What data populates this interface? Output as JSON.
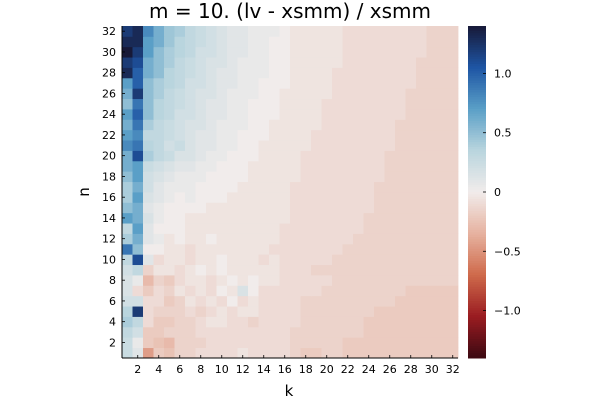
{
  "chart_data": {
    "type": "heatmap",
    "title": "m = 10. (lv - xsmm) / xsmm",
    "xlabel": "k",
    "ylabel": "n",
    "x_range": [
      1,
      32
    ],
    "y_range": [
      1,
      32
    ],
    "x_ticks": [
      2,
      4,
      6,
      8,
      10,
      12,
      14,
      16,
      18,
      20,
      22,
      24,
      26,
      28,
      30,
      32
    ],
    "y_ticks": [
      2,
      4,
      6,
      8,
      10,
      12,
      14,
      16,
      18,
      20,
      22,
      24,
      26,
      28,
      30,
      32
    ],
    "x_tick_labels": [
      "2",
      "4",
      "6",
      "8",
      "10",
      "12",
      "14",
      "16",
      "18",
      "20",
      "22",
      "24",
      "26",
      "28",
      "30",
      "32"
    ],
    "y_tick_labels": [
      "2",
      "4",
      "6",
      "8",
      "10",
      "12",
      "14",
      "16",
      "18",
      "20",
      "22",
      "24",
      "26",
      "28",
      "30",
      "32"
    ],
    "colorbar": {
      "range": [
        -1.4,
        1.4
      ],
      "ticks": [
        -1.0,
        -0.5,
        0,
        0.5,
        1.0
      ],
      "tick_labels": [
        "−1.0",
        "−0.5",
        "0",
        "0.5",
        "1.0"
      ],
      "colormap": "balance",
      "stops": [
        "#3c0912",
        "#9a1c21",
        "#cf6a4b",
        "#e6b2a0",
        "#f1eceb",
        "#b9d5de",
        "#5a9fc7",
        "#1e55a4",
        "#171937"
      ]
    },
    "cell_rows_note_omitted": true,
    "rows": [
      [
        0.25,
        0.1,
        -0.45,
        -0.2,
        -0.25,
        -0.15,
        -0.15,
        -0.1,
        -0.1,
        -0.1,
        -0.1,
        -0.05,
        -0.1,
        -0.1,
        -0.1,
        -0.1,
        -0.15,
        -0.2,
        -0.2,
        -0.15,
        -0.15,
        -0.2,
        -0.2,
        -0.2,
        -0.2,
        -0.2,
        -0.2,
        -0.2,
        -0.2,
        -0.2,
        -0.2,
        -0.2
      ],
      [
        0.25,
        0.05,
        -0.2,
        -0.25,
        -0.3,
        -0.15,
        -0.15,
        -0.15,
        -0.1,
        -0.1,
        -0.1,
        -0.1,
        -0.1,
        -0.1,
        -0.1,
        -0.1,
        -0.15,
        -0.15,
        -0.15,
        -0.15,
        -0.15,
        -0.2,
        -0.2,
        -0.2,
        -0.2,
        -0.2,
        -0.2,
        -0.2,
        -0.2,
        -0.2,
        -0.2,
        -0.2
      ],
      [
        0.3,
        0.2,
        -0.2,
        -0.2,
        -0.15,
        -0.15,
        -0.15,
        -0.1,
        -0.1,
        -0.1,
        -0.1,
        -0.1,
        -0.1,
        -0.1,
        -0.1,
        -0.1,
        -0.15,
        -0.15,
        -0.15,
        -0.15,
        -0.15,
        -0.15,
        -0.15,
        -0.2,
        -0.2,
        -0.2,
        -0.2,
        -0.2,
        -0.2,
        -0.2,
        -0.2,
        -0.2
      ],
      [
        0.4,
        0.3,
        -0.1,
        -0.2,
        -0.2,
        -0.15,
        -0.15,
        -0.1,
        -0.05,
        -0.05,
        -0.1,
        -0.1,
        -0.15,
        -0.1,
        -0.1,
        -0.1,
        -0.1,
        -0.15,
        -0.15,
        -0.15,
        -0.15,
        -0.15,
        -0.15,
        -0.2,
        -0.2,
        -0.2,
        -0.2,
        -0.2,
        -0.2,
        -0.2,
        -0.2,
        -0.2
      ],
      [
        0.35,
        1.2,
        -0.1,
        -0.15,
        -0.15,
        -0.15,
        -0.1,
        -0.15,
        -0.1,
        -0.05,
        -0.1,
        -0.05,
        -0.05,
        -0.1,
        -0.1,
        -0.1,
        -0.1,
        -0.15,
        -0.15,
        -0.15,
        -0.15,
        -0.15,
        -0.15,
        -0.15,
        -0.2,
        -0.2,
        -0.2,
        -0.2,
        -0.2,
        -0.2,
        -0.2,
        -0.2
      ],
      [
        0.2,
        0.2,
        -0.1,
        -0.1,
        -0.2,
        -0.15,
        -0.05,
        -0.1,
        -0.05,
        -0.1,
        0.0,
        -0.1,
        -0.05,
        -0.1,
        -0.1,
        -0.1,
        -0.1,
        -0.15,
        -0.15,
        -0.15,
        -0.15,
        -0.15,
        -0.15,
        -0.15,
        -0.15,
        -0.15,
        -0.2,
        -0.2,
        -0.2,
        -0.2,
        -0.2,
        -0.2
      ],
      [
        0.15,
        -0.1,
        -0.2,
        -0.1,
        -0.15,
        -0.05,
        -0.1,
        -0.05,
        -0.1,
        0.0,
        -0.05,
        0.15,
        0.0,
        -0.1,
        -0.1,
        -0.1,
        -0.1,
        -0.1,
        -0.1,
        -0.15,
        -0.15,
        -0.15,
        -0.15,
        -0.15,
        -0.15,
        -0.15,
        -0.15,
        -0.2,
        -0.2,
        -0.2,
        -0.2,
        -0.2
      ],
      [
        0.15,
        0.05,
        -0.3,
        -0.15,
        -0.2,
        -0.1,
        -0.05,
        -0.05,
        -0.1,
        -0.05,
        0.0,
        -0.05,
        0.0,
        -0.05,
        -0.05,
        -0.1,
        -0.1,
        -0.1,
        -0.1,
        -0.1,
        -0.15,
        -0.15,
        -0.15,
        -0.15,
        -0.15,
        -0.15,
        -0.15,
        -0.15,
        -0.15,
        -0.15,
        -0.15,
        -0.15
      ],
      [
        0.2,
        0.3,
        -0.15,
        -0.05,
        -0.05,
        -0.1,
        -0.05,
        0.0,
        -0.05,
        0.0,
        -0.05,
        -0.05,
        -0.05,
        -0.05,
        -0.05,
        -0.1,
        -0.1,
        -0.1,
        -0.15,
        -0.15,
        -0.15,
        -0.15,
        -0.15,
        -0.15,
        -0.15,
        -0.15,
        -0.15,
        -0.15,
        -0.15,
        -0.15,
        -0.15,
        -0.15
      ],
      [
        0.3,
        1.1,
        0.1,
        -0.1,
        -0.05,
        -0.05,
        -0.1,
        -0.05,
        -0.05,
        0.0,
        -0.05,
        -0.05,
        -0.05,
        -0.1,
        -0.05,
        -0.1,
        -0.1,
        -0.1,
        -0.1,
        -0.1,
        -0.15,
        -0.15,
        -0.15,
        -0.15,
        -0.15,
        -0.15,
        -0.15,
        -0.15,
        -0.15,
        -0.15,
        -0.15,
        -0.15
      ],
      [
        0.9,
        0.5,
        0.0,
        0.0,
        -0.05,
        -0.05,
        -0.1,
        -0.05,
        -0.05,
        -0.05,
        -0.05,
        -0.05,
        -0.05,
        -0.05,
        -0.1,
        -0.1,
        -0.1,
        -0.1,
        -0.1,
        -0.1,
        -0.1,
        -0.15,
        -0.15,
        -0.15,
        -0.15,
        -0.15,
        -0.15,
        -0.15,
        -0.15,
        -0.15,
        -0.15,
        -0.15
      ],
      [
        0.4,
        0.6,
        0.1,
        0.05,
        -0.05,
        0.0,
        -0.05,
        -0.05,
        0.0,
        -0.05,
        -0.05,
        -0.05,
        -0.05,
        -0.05,
        -0.05,
        -0.1,
        -0.1,
        -0.1,
        -0.1,
        -0.1,
        -0.1,
        -0.1,
        -0.15,
        -0.15,
        -0.15,
        -0.15,
        -0.15,
        -0.15,
        -0.15,
        -0.15,
        -0.15,
        -0.15
      ],
      [
        0.3,
        0.7,
        0.1,
        0.0,
        0.0,
        0.0,
        -0.05,
        -0.05,
        -0.05,
        -0.05,
        -0.05,
        -0.05,
        -0.05,
        -0.05,
        -0.05,
        -0.1,
        -0.1,
        -0.1,
        -0.1,
        -0.1,
        -0.1,
        -0.1,
        -0.1,
        -0.15,
        -0.15,
        -0.15,
        -0.15,
        -0.15,
        -0.15,
        -0.15,
        -0.15,
        -0.15
      ],
      [
        0.7,
        0.6,
        0.15,
        0.05,
        0.0,
        0.0,
        -0.05,
        -0.05,
        -0.05,
        -0.05,
        -0.05,
        -0.05,
        -0.05,
        -0.05,
        -0.05,
        -0.05,
        -0.1,
        -0.1,
        -0.1,
        -0.1,
        -0.1,
        -0.1,
        -0.1,
        -0.15,
        -0.15,
        -0.15,
        -0.15,
        -0.15,
        -0.15,
        -0.15,
        -0.15,
        -0.15
      ],
      [
        0.5,
        0.6,
        0.1,
        0.05,
        0.0,
        0.0,
        0.0,
        0.0,
        -0.05,
        -0.05,
        -0.05,
        -0.05,
        -0.05,
        -0.05,
        -0.05,
        -0.05,
        -0.1,
        -0.1,
        -0.1,
        -0.1,
        -0.1,
        -0.1,
        -0.1,
        -0.1,
        -0.15,
        -0.15,
        -0.15,
        -0.15,
        -0.15,
        -0.15,
        -0.15,
        -0.15
      ],
      [
        0.4,
        0.7,
        0.15,
        0.1,
        0.05,
        0.0,
        0.05,
        0.0,
        0.0,
        0.0,
        -0.05,
        -0.05,
        -0.05,
        -0.05,
        -0.05,
        -0.05,
        -0.1,
        -0.1,
        -0.1,
        -0.1,
        -0.1,
        -0.1,
        -0.1,
        -0.1,
        -0.15,
        -0.15,
        -0.15,
        -0.15,
        -0.15,
        -0.15,
        -0.15,
        -0.15
      ],
      [
        0.4,
        0.6,
        0.2,
        0.1,
        0.05,
        0.05,
        0.05,
        0.0,
        0.0,
        0.0,
        0.0,
        -0.05,
        -0.05,
        -0.05,
        -0.05,
        -0.05,
        -0.1,
        -0.1,
        -0.1,
        -0.1,
        -0.1,
        -0.1,
        -0.1,
        -0.1,
        -0.15,
        -0.15,
        -0.15,
        -0.15,
        -0.15,
        -0.15,
        -0.15,
        -0.15
      ],
      [
        0.5,
        0.7,
        0.2,
        0.15,
        0.1,
        0.05,
        0.05,
        0.05,
        0.0,
        0.0,
        0.0,
        0.0,
        -0.05,
        -0.05,
        -0.05,
        -0.05,
        -0.05,
        -0.1,
        -0.1,
        -0.1,
        -0.1,
        -0.1,
        -0.1,
        -0.1,
        -0.1,
        -0.15,
        -0.15,
        -0.15,
        -0.15,
        -0.15,
        -0.15,
        -0.15
      ],
      [
        0.6,
        0.7,
        0.25,
        0.2,
        0.15,
        0.1,
        0.1,
        0.05,
        0.05,
        0.0,
        0.0,
        0.0,
        -0.05,
        -0.05,
        -0.05,
        -0.05,
        -0.05,
        -0.1,
        -0.1,
        -0.1,
        -0.1,
        -0.1,
        -0.1,
        -0.1,
        -0.1,
        -0.15,
        -0.15,
        -0.15,
        -0.15,
        -0.15,
        -0.15,
        -0.15
      ],
      [
        0.6,
        1.1,
        0.4,
        0.3,
        0.25,
        0.15,
        0.15,
        0.1,
        0.05,
        0.05,
        0.0,
        0.0,
        0.0,
        -0.05,
        -0.05,
        -0.05,
        -0.05,
        -0.1,
        -0.1,
        -0.1,
        -0.1,
        -0.1,
        -0.1,
        -0.1,
        -0.1,
        -0.15,
        -0.15,
        -0.15,
        -0.15,
        -0.15,
        -0.15,
        -0.15
      ],
      [
        0.8,
        0.9,
        0.35,
        0.3,
        0.2,
        0.25,
        0.15,
        0.1,
        0.1,
        0.05,
        0.05,
        0.0,
        0.0,
        -0.05,
        -0.05,
        -0.05,
        -0.05,
        -0.05,
        -0.1,
        -0.1,
        -0.1,
        -0.1,
        -0.1,
        -0.1,
        -0.1,
        -0.1,
        -0.15,
        -0.15,
        -0.15,
        -0.15,
        -0.15,
        -0.15
      ],
      [
        0.7,
        0.8,
        0.3,
        0.3,
        0.25,
        0.2,
        0.15,
        0.1,
        0.1,
        0.05,
        0.05,
        0.0,
        0.0,
        0.0,
        -0.05,
        -0.05,
        -0.05,
        -0.05,
        -0.1,
        -0.1,
        -0.1,
        -0.1,
        -0.1,
        -0.1,
        -0.1,
        -0.1,
        -0.15,
        -0.15,
        -0.15,
        -0.15,
        -0.15,
        -0.15
      ],
      [
        0.6,
        0.9,
        0.4,
        0.3,
        0.25,
        0.2,
        0.15,
        0.15,
        0.1,
        0.05,
        0.05,
        0.05,
        0.0,
        0.0,
        -0.05,
        -0.05,
        -0.05,
        -0.05,
        -0.05,
        -0.1,
        -0.1,
        -0.1,
        -0.1,
        -0.1,
        -0.1,
        -0.1,
        -0.15,
        -0.15,
        -0.15,
        -0.15,
        -0.15,
        -0.15
      ],
      [
        0.7,
        1.0,
        0.5,
        0.35,
        0.3,
        0.2,
        0.2,
        0.15,
        0.1,
        0.1,
        0.05,
        0.05,
        0.0,
        0.0,
        0.0,
        -0.05,
        -0.05,
        -0.05,
        -0.05,
        -0.1,
        -0.1,
        -0.1,
        -0.1,
        -0.1,
        -0.1,
        -0.1,
        -0.1,
        -0.15,
        -0.15,
        -0.15,
        -0.15,
        -0.15
      ],
      [
        0.5,
        0.9,
        0.5,
        0.35,
        0.3,
        0.25,
        0.2,
        0.15,
        0.1,
        0.1,
        0.05,
        0.05,
        0.0,
        0.0,
        0.0,
        -0.05,
        -0.05,
        -0.05,
        -0.05,
        -0.1,
        -0.1,
        -0.1,
        -0.1,
        -0.1,
        -0.1,
        -0.1,
        -0.1,
        -0.15,
        -0.15,
        -0.15,
        -0.15,
        -0.15
      ],
      [
        0.6,
        1.2,
        0.5,
        0.4,
        0.3,
        0.25,
        0.2,
        0.15,
        0.15,
        0.1,
        0.05,
        0.05,
        0.05,
        0.0,
        0.0,
        -0.05,
        -0.05,
        -0.05,
        -0.05,
        -0.05,
        -0.1,
        -0.1,
        -0.1,
        -0.1,
        -0.1,
        -0.1,
        -0.1,
        -0.15,
        -0.15,
        -0.15,
        -0.15,
        -0.15
      ],
      [
        0.7,
        1.0,
        0.5,
        0.4,
        0.35,
        0.3,
        0.2,
        0.2,
        0.15,
        0.1,
        0.1,
        0.05,
        0.05,
        0.0,
        0.0,
        0.0,
        -0.05,
        -0.05,
        -0.05,
        -0.05,
        -0.1,
        -0.1,
        -0.1,
        -0.1,
        -0.1,
        -0.1,
        -0.1,
        -0.1,
        -0.15,
        -0.15,
        -0.15,
        -0.15
      ],
      [
        1.3,
        1.0,
        0.6,
        0.5,
        0.35,
        0.3,
        0.25,
        0.2,
        0.15,
        0.1,
        0.1,
        0.05,
        0.05,
        0.05,
        0.0,
        0.0,
        -0.05,
        -0.05,
        -0.05,
        -0.05,
        -0.1,
        -0.1,
        -0.1,
        -0.1,
        -0.1,
        -0.1,
        -0.1,
        -0.1,
        -0.15,
        -0.15,
        -0.15,
        -0.15
      ],
      [
        1.2,
        1.1,
        0.6,
        0.5,
        0.4,
        0.3,
        0.25,
        0.2,
        0.15,
        0.15,
        0.1,
        0.05,
        0.05,
        0.05,
        0.0,
        0.0,
        -0.05,
        -0.05,
        -0.05,
        -0.05,
        -0.05,
        -0.1,
        -0.1,
        -0.1,
        -0.1,
        -0.1,
        -0.1,
        -0.1,
        -0.15,
        -0.15,
        -0.15,
        -0.15
      ],
      [
        1.4,
        1.2,
        0.7,
        0.5,
        0.4,
        0.35,
        0.3,
        0.2,
        0.2,
        0.15,
        0.1,
        0.1,
        0.05,
        0.05,
        0.0,
        0.0,
        -0.05,
        -0.05,
        -0.05,
        -0.05,
        -0.05,
        -0.1,
        -0.1,
        -0.1,
        -0.1,
        -0.1,
        -0.1,
        -0.1,
        -0.1,
        -0.15,
        -0.15,
        -0.15
      ],
      [
        1.3,
        1.3,
        0.7,
        0.6,
        0.45,
        0.35,
        0.3,
        0.25,
        0.2,
        0.15,
        0.1,
        0.1,
        0.05,
        0.05,
        0.0,
        0.0,
        -0.05,
        -0.05,
        -0.05,
        -0.05,
        -0.05,
        -0.1,
        -0.1,
        -0.1,
        -0.1,
        -0.1,
        -0.1,
        -0.1,
        -0.1,
        -0.15,
        -0.15,
        -0.15
      ],
      [
        1.2,
        1.3,
        0.8,
        0.6,
        0.45,
        0.4,
        0.3,
        0.25,
        0.2,
        0.15,
        0.1,
        0.1,
        0.05,
        0.05,
        0.05,
        0.0,
        -0.05,
        -0.05,
        -0.05,
        -0.05,
        -0.05,
        -0.1,
        -0.1,
        -0.1,
        -0.1,
        -0.1,
        -0.1,
        -0.1,
        -0.1,
        -0.15,
        -0.15,
        -0.15
      ]
    ]
  }
}
